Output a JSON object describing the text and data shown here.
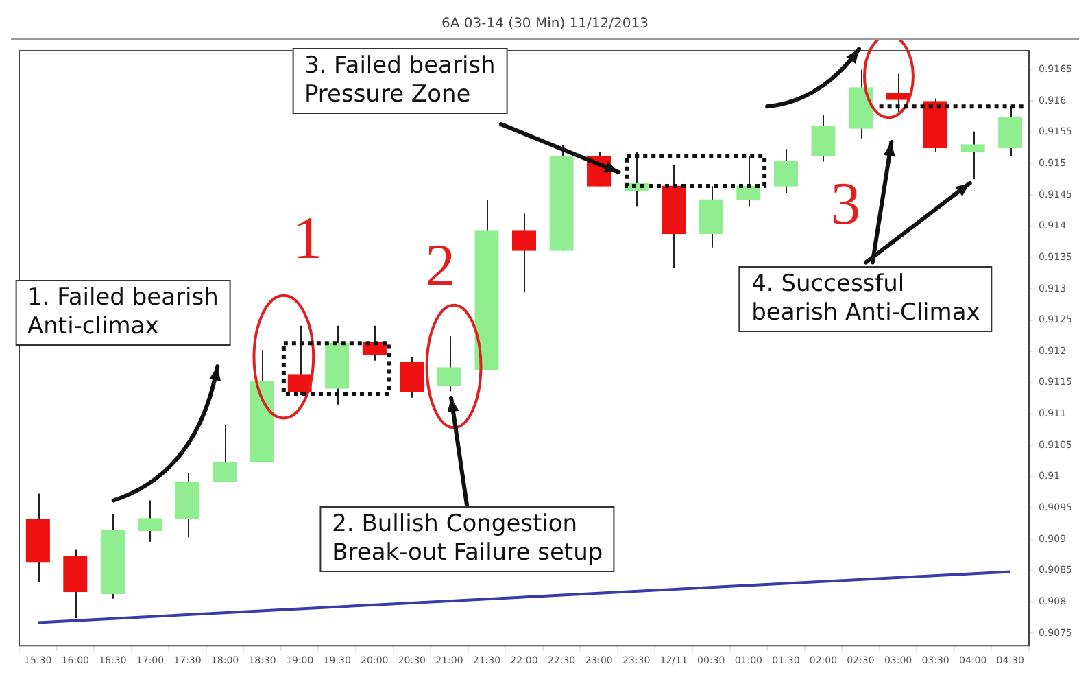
{
  "chart_data": {
    "type": "candlestick",
    "title": "6A 03-14 (30 Min) 11/12/2013",
    "categories": [
      "15:30",
      "16:00",
      "16:30",
      "17:00",
      "17:30",
      "18:00",
      "18:30",
      "19:00",
      "19:30",
      "20:00",
      "20:30",
      "21:00",
      "21:30",
      "22:00",
      "22:30",
      "23:00",
      "23:30",
      "12/11",
      "00:30",
      "01:00",
      "01:30",
      "02:00",
      "02:30",
      "03:00",
      "03:30",
      "04:00",
      "04:30"
    ],
    "ohlc": [
      [
        0.90931,
        0.90973,
        0.90831,
        0.90864
      ],
      [
        0.90872,
        0.90883,
        0.90774,
        0.90816
      ],
      [
        0.90813,
        0.9094,
        0.90805,
        0.90914
      ],
      [
        0.90914,
        0.90962,
        0.90896,
        0.90933
      ],
      [
        0.90933,
        0.91006,
        0.90903,
        0.90992
      ],
      [
        0.90992,
        0.91082,
        0.90992,
        0.91023
      ],
      [
        0.91023,
        0.91202,
        0.91023,
        0.91152
      ],
      [
        0.91163,
        0.91241,
        0.9113,
        0.91136
      ],
      [
        0.91141,
        0.91241,
        0.91115,
        0.91213
      ],
      [
        0.91215,
        0.91241,
        0.91185,
        0.91195
      ],
      [
        0.91182,
        0.91191,
        0.91126,
        0.91136
      ],
      [
        0.91145,
        0.91224,
        0.91136,
        0.91174
      ],
      [
        0.91171,
        0.91442,
        0.91171,
        0.91392
      ],
      [
        0.91392,
        0.9142,
        0.91294,
        0.91361
      ],
      [
        0.91361,
        0.9153,
        0.91361,
        0.91512
      ],
      [
        0.91512,
        0.91519,
        0.91464,
        0.91464
      ],
      [
        0.91457,
        0.91519,
        0.91431,
        0.91468
      ],
      [
        0.91464,
        0.91497,
        0.91333,
        0.91388
      ],
      [
        0.91388,
        0.91464,
        0.91366,
        0.91442
      ],
      [
        0.91442,
        0.91512,
        0.91431,
        0.91464
      ],
      [
        0.91464,
        0.91523,
        0.91453,
        0.91503
      ],
      [
        0.91512,
        0.91578,
        0.91503,
        0.9156
      ],
      [
        0.91556,
        0.9165,
        0.9154,
        0.91621
      ],
      [
        0.91612,
        0.91643,
        0.91582,
        0.91602
      ],
      [
        0.91599,
        0.91604,
        0.91519,
        0.91525
      ],
      [
        0.91519,
        0.91551,
        0.91475,
        0.9153
      ],
      [
        0.91525,
        0.91591,
        0.91512,
        0.91573
      ]
    ],
    "colors": [
      "#ee1111",
      "#ee1111",
      "#90ee90",
      "#90ee90",
      "#90ee90",
      "#90ee90",
      "#90ee90",
      "#ee1111",
      "#90ee90",
      "#ee1111",
      "#ee1111",
      "#90ee90",
      "#90ee90",
      "#ee1111",
      "#90ee90",
      "#ee1111",
      "#90ee90",
      "#ee1111",
      "#90ee90",
      "#90ee90",
      "#90ee90",
      "#90ee90",
      "#90ee90",
      "#ee1111",
      "#ee1111",
      "#90ee90",
      "#90ee90"
    ],
    "series": [
      {
        "type": "line",
        "color": "#3a3aa8",
        "values": [
          0.90767,
          null,
          null,
          null,
          null,
          null,
          null,
          null,
          null,
          null,
          null,
          null,
          null,
          null,
          null,
          null,
          null,
          null,
          null,
          null,
          null,
          null,
          null,
          null,
          null,
          null,
          0.90848
        ]
      }
    ],
    "ylim": [
      0.9073,
      0.9168
    ],
    "yticks": [
      0.9075,
      0.908,
      0.9085,
      0.909,
      0.9095,
      0.91,
      0.9105,
      0.911,
      0.9115,
      0.912,
      0.9125,
      0.913,
      0.9135,
      0.914,
      0.9145,
      0.915,
      0.9155,
      0.916,
      0.9165
    ],
    "annotations": [
      "1. Failed bearish\nAnti-climax",
      "2. Bullish Congestion\nBreak-out Failure setup",
      "3. Failed bearish\nPressure Zone",
      "4. Successful\nbearish Anti-Climax",
      "1",
      "2",
      "3"
    ]
  }
}
